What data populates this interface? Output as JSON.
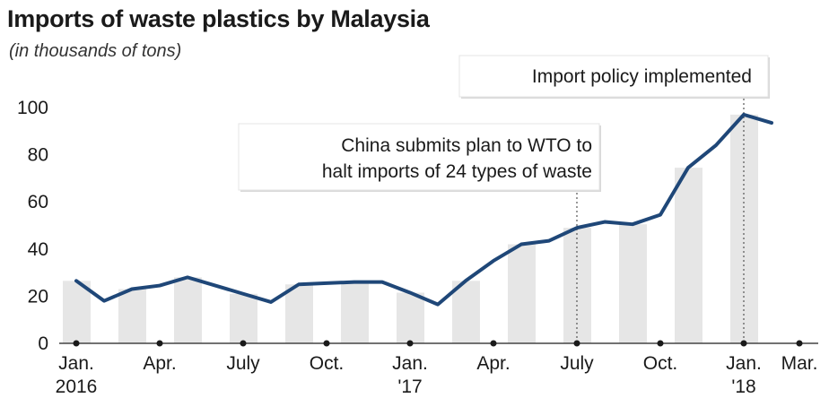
{
  "title": "Imports of waste plastics by Malaysia",
  "subtitle": "(in thousands of tons)",
  "chart_data": {
    "type": "line",
    "title": "Imports of waste plastics by Malaysia",
    "subtitle": "(in thousands of tons)",
    "xlabel": "",
    "ylabel": "",
    "ylim": [
      0,
      100
    ],
    "yticks": [
      0,
      20,
      40,
      60,
      80,
      100
    ],
    "grid": false,
    "x_tick_labels": [
      {
        "line1": "Jan.",
        "line2": "2016"
      },
      {
        "line1": "Apr.",
        "line2": ""
      },
      {
        "line1": "July",
        "line2": ""
      },
      {
        "line1": "Oct.",
        "line2": ""
      },
      {
        "line1": "Jan.",
        "line2": "'17"
      },
      {
        "line1": "Apr.",
        "line2": ""
      },
      {
        "line1": "July",
        "line2": ""
      },
      {
        "line1": "Oct.",
        "line2": ""
      },
      {
        "line1": "Jan.",
        "line2": "'18"
      },
      {
        "line1": "Mar.",
        "line2": ""
      }
    ],
    "x": [
      "2016-01",
      "2016-02",
      "2016-03",
      "2016-04",
      "2016-05",
      "2016-06",
      "2016-07",
      "2016-08",
      "2016-09",
      "2016-10",
      "2016-11",
      "2016-12",
      "2017-01",
      "2017-02",
      "2017-03",
      "2017-04",
      "2017-05",
      "2017-06",
      "2017-07",
      "2017-08",
      "2017-09",
      "2017-10",
      "2017-11",
      "2017-12",
      "2018-01",
      "2018-02"
    ],
    "values": [
      26.5,
      18,
      23,
      24.5,
      28,
      24.5,
      21,
      17.5,
      25,
      25.5,
      26,
      26,
      21.5,
      16.5,
      26.5,
      35,
      42,
      43.5,
      49,
      51.5,
      50.5,
      54.5,
      74.5,
      84,
      97,
      93.5
    ],
    "annotations": [
      {
        "lines": [
          "China submits plan to WTO to",
          "halt imports of 24 types of waste"
        ],
        "x": "2017-07"
      },
      {
        "lines": [
          "Import policy implemented"
        ],
        "x": "2018-01"
      }
    ],
    "line_color": "#1f4778",
    "bar_color": "#e6e6e6"
  }
}
